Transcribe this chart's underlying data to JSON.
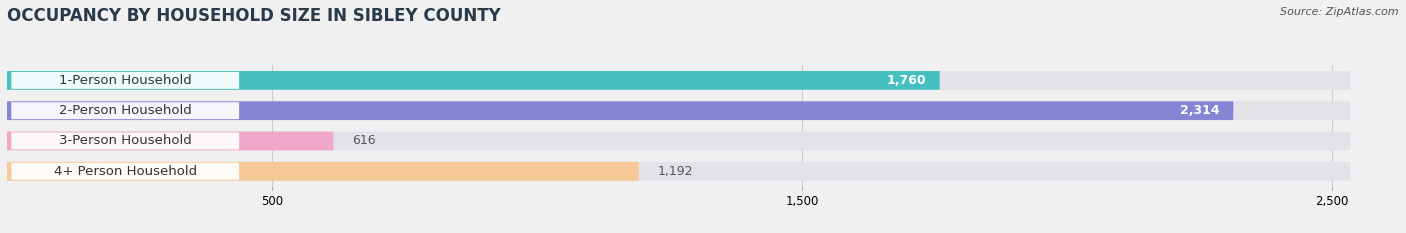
{
  "title": "OCCUPANCY BY HOUSEHOLD SIZE IN SIBLEY COUNTY",
  "source": "Source: ZipAtlas.com",
  "categories": [
    "1-Person Household",
    "2-Person Household",
    "3-Person Household",
    "4+ Person Household"
  ],
  "values": [
    1760,
    2314,
    616,
    1192
  ],
  "bar_colors": [
    "#45bfbf",
    "#8585d4",
    "#f0a8c8",
    "#f5c896"
  ],
  "background_color": "#f0f0f0",
  "bar_bg_color": "#e2e2e8",
  "xlim": [
    0,
    2600
  ],
  "xticks": [
    500,
    1500,
    2500
  ],
  "bar_height": 0.62,
  "title_fontsize": 12,
  "label_fontsize": 9.5,
  "value_fontsize": 9
}
